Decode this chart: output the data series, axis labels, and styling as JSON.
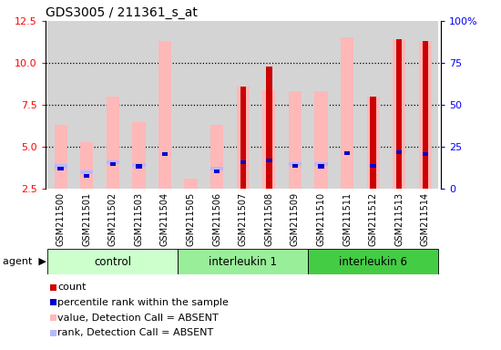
{
  "title": "GDS3005 / 211361_s_at",
  "samples": [
    "GSM211500",
    "GSM211501",
    "GSM211502",
    "GSM211503",
    "GSM211504",
    "GSM211505",
    "GSM211506",
    "GSM211507",
    "GSM211508",
    "GSM211509",
    "GSM211510",
    "GSM211511",
    "GSM211512",
    "GSM211513",
    "GSM211514"
  ],
  "groups": [
    {
      "name": "control",
      "start": 0,
      "end": 5,
      "color": "#ccffcc"
    },
    {
      "name": "interleukin 1",
      "start": 5,
      "end": 10,
      "color": "#99ee99"
    },
    {
      "name": "interleukin 6",
      "start": 10,
      "end": 15,
      "color": "#44cc44"
    }
  ],
  "pink_bar_heights": [
    6.3,
    5.3,
    8.0,
    6.5,
    11.3,
    3.1,
    6.3,
    8.6,
    8.4,
    8.3,
    8.3,
    11.5,
    8.0,
    11.4,
    11.3
  ],
  "red_bar_heights": [
    0.0,
    0.0,
    0.0,
    0.0,
    0.0,
    0.0,
    0.0,
    8.6,
    9.8,
    0.0,
    0.0,
    0.0,
    8.0,
    11.4,
    11.3
  ],
  "blue_rank_heights": [
    3.7,
    3.3,
    4.0,
    3.85,
    4.6,
    0.0,
    3.55,
    4.1,
    4.2,
    3.9,
    3.85,
    4.65,
    3.9,
    4.7,
    4.6
  ],
  "lavender_rank_heights": [
    3.85,
    3.5,
    4.1,
    3.95,
    0.0,
    0.0,
    3.7,
    0.0,
    0.0,
    4.0,
    4.0,
    0.0,
    0.0,
    0.0,
    0.0
  ],
  "ylim_left": [
    2.5,
    12.5
  ],
  "yticks_left": [
    2.5,
    5.0,
    7.5,
    10.0,
    12.5
  ],
  "yticks_right": [
    0,
    25,
    50,
    75,
    100
  ],
  "ytick_labels_right": [
    "0",
    "25",
    "50",
    "75",
    "100%"
  ],
  "bar_width": 0.5,
  "pink_color": "#ffb8b8",
  "red_color": "#cc0000",
  "blue_color": "#0000cc",
  "lavender_color": "#b8b8ff",
  "bg_color": "#d4d4d4",
  "white": "#ffffff"
}
